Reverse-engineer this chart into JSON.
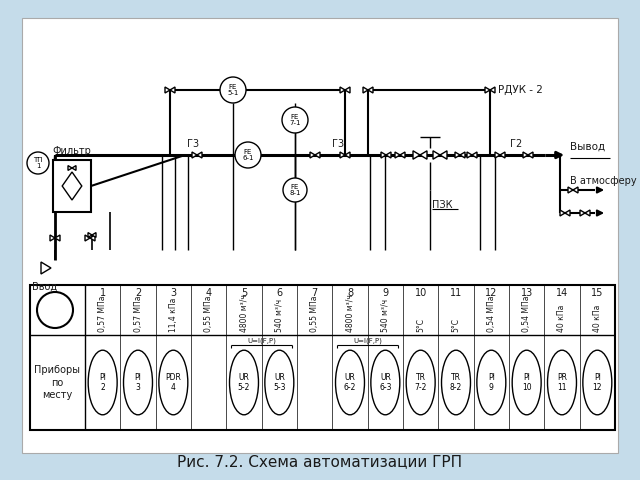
{
  "title": "Рис. 7.2. Схема автоматизации ГРП",
  "bg_color": "#c5dcea",
  "line_color": "#1a1a1a",
  "text_color": "#1a1a1a",
  "labels_top": [
    "1",
    "2",
    "3",
    "4",
    "5",
    "6",
    "7",
    "8",
    "9",
    "10",
    "11",
    "12",
    "13",
    "14",
    "15"
  ],
  "labels_diag": [
    "0,57 МПа",
    "0,57 МПа",
    "11,4 кПа",
    "0,55 МПа",
    "4800 м³/ч",
    "540 м³/ч",
    "0,55 МПа",
    "4800 м³/ч",
    "540 м³/ч",
    "5°С",
    "5°С",
    "0,54 МПа",
    "0,54 МПа",
    "40 кПа",
    "40 кПа"
  ],
  "instr_labels": [
    "PI\n2",
    "PI\n3",
    "PDR\n4",
    "UR\n5-2",
    "UR\n5-3",
    "UR\n6-2",
    "UR\n6-3",
    "TR\n7-2",
    "TR\n8-2",
    "PI\n9",
    "PI\n10",
    "PR\n11",
    "PI\n12"
  ],
  "instr_cols": [
    1,
    2,
    3,
    5,
    6,
    8,
    9,
    10,
    11,
    12,
    13,
    14,
    15
  ],
  "group1_cols": [
    5,
    6
  ],
  "group2_cols": [
    8,
    9
  ],
  "row_label": "Приборы\nпо\nместу"
}
